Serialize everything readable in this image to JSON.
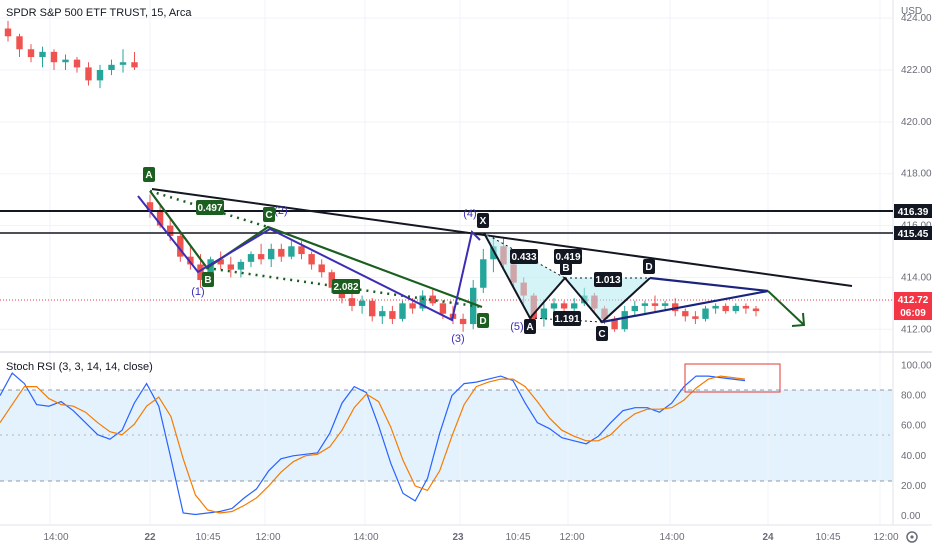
{
  "header": {
    "symbol_title": "SPDR S&P 500 ETF TRUST, 15, Arca",
    "currency": "USD"
  },
  "price_axis": {
    "ticks": [
      "424.00",
      "422.00",
      "420.00",
      "418.00",
      "416.00",
      "414.00",
      "412.00"
    ],
    "markers": [
      {
        "label": "416.39",
        "value": 416.39,
        "color": "#131722"
      },
      {
        "label": "415.45",
        "value": 415.45,
        "color": "#131722"
      }
    ],
    "last_price": {
      "label": "412.72",
      "countdown": "06:09",
      "value": 412.72,
      "color": "#f23645"
    }
  },
  "time_axis": {
    "labels": [
      "14:00",
      "22",
      "10:45",
      "12:00",
      "14:00",
      "23",
      "10:45",
      "12:00",
      "14:00",
      "24",
      "10:45",
      "12:00"
    ]
  },
  "indicator": {
    "name": "Stoch RSI (3, 3, 14, 14, close)",
    "ticks": [
      "100.00",
      "80.00",
      "60.00",
      "40.00",
      "20.00",
      "0.00"
    ],
    "upper_band": 80,
    "lower_band": 20,
    "colors": {
      "k": "#2962ff",
      "d": "#f57c00",
      "band_fill": "#e3f2fd"
    }
  },
  "annotations": {
    "pattern1_points": [
      {
        "label": "A",
        "price": 417.1
      },
      {
        "label": "B",
        "price": 413.6
      },
      {
        "label": "C",
        "price": 416.3
      },
      {
        "label": "D",
        "price": 412.2
      }
    ],
    "pattern1_ratios": [
      "0.497",
      "2.082"
    ],
    "pattern2_points": [
      {
        "label": "X",
        "price": 415.7
      },
      {
        "label": "A",
        "price": 411.8
      },
      {
        "label": "B",
        "price": 413.4
      },
      {
        "label": "C",
        "price": 411.8
      },
      {
        "label": "D",
        "price": 413.3
      }
    ],
    "pattern2_ratios": [
      "0.433",
      "0.419",
      "1.013",
      "1.191"
    ],
    "waves": [
      "(1)",
      "(2)",
      "(3)",
      "(4)",
      "(5)"
    ],
    "colors": {
      "pattern1": "#1b5e20",
      "pattern2": "#131722",
      "wave": "#3d2db5",
      "triangle": "#1a237e",
      "arrow": "#1b5e20"
    }
  },
  "chart_data": [
    {
      "type": "candlestick",
      "title": "SPDR S&P 500 ETF TRUST, 15, Arca",
      "ylabel": "USD",
      "ylim": [
        411.2,
        424.7
      ],
      "up_color": "#26a69a",
      "down_color": "#ef5350",
      "candles": [
        {
          "o": 423.6,
          "h": 423.9,
          "l": 423.1,
          "c": 423.3
        },
        {
          "o": 423.3,
          "h": 423.4,
          "l": 422.5,
          "c": 422.8
        },
        {
          "o": 422.8,
          "h": 423.0,
          "l": 422.3,
          "c": 422.5
        },
        {
          "o": 422.5,
          "h": 422.9,
          "l": 422.1,
          "c": 422.7
        },
        {
          "o": 422.7,
          "h": 422.8,
          "l": 422.0,
          "c": 422.3
        },
        {
          "o": 422.3,
          "h": 422.6,
          "l": 422.0,
          "c": 422.4
        },
        {
          "o": 422.4,
          "h": 422.5,
          "l": 421.9,
          "c": 422.1
        },
        {
          "o": 422.1,
          "h": 422.3,
          "l": 421.4,
          "c": 421.6
        },
        {
          "o": 421.6,
          "h": 422.2,
          "l": 421.3,
          "c": 422.0
        },
        {
          "o": 422.0,
          "h": 422.4,
          "l": 421.8,
          "c": 422.2
        },
        {
          "o": 422.2,
          "h": 422.8,
          "l": 421.9,
          "c": 422.3
        },
        {
          "o": 422.3,
          "h": 422.7,
          "l": 422.0,
          "c": 422.1
        },
        {
          "o": 416.9,
          "h": 417.2,
          "l": 416.3,
          "c": 416.6
        },
        {
          "o": 416.6,
          "h": 416.8,
          "l": 415.9,
          "c": 416.0
        },
        {
          "o": 416.0,
          "h": 416.3,
          "l": 415.4,
          "c": 415.6
        },
        {
          "o": 415.6,
          "h": 415.7,
          "l": 414.6,
          "c": 414.8
        },
        {
          "o": 414.8,
          "h": 415.2,
          "l": 414.3,
          "c": 414.5
        },
        {
          "o": 414.5,
          "h": 414.9,
          "l": 413.6,
          "c": 413.9
        },
        {
          "o": 413.9,
          "h": 414.8,
          "l": 413.7,
          "c": 414.7
        },
        {
          "o": 414.7,
          "h": 415.0,
          "l": 414.3,
          "c": 414.5
        },
        {
          "o": 414.5,
          "h": 414.8,
          "l": 414.0,
          "c": 414.3
        },
        {
          "o": 414.3,
          "h": 414.7,
          "l": 414.0,
          "c": 414.6
        },
        {
          "o": 414.6,
          "h": 415.0,
          "l": 414.4,
          "c": 414.9
        },
        {
          "o": 414.9,
          "h": 415.3,
          "l": 414.5,
          "c": 414.7
        },
        {
          "o": 414.7,
          "h": 415.3,
          "l": 414.4,
          "c": 415.1
        },
        {
          "o": 415.1,
          "h": 415.3,
          "l": 414.6,
          "c": 414.8
        },
        {
          "o": 414.8,
          "h": 415.4,
          "l": 414.7,
          "c": 415.2
        },
        {
          "o": 415.2,
          "h": 415.4,
          "l": 414.7,
          "c": 414.9
        },
        {
          "o": 414.9,
          "h": 415.0,
          "l": 414.3,
          "c": 414.5
        },
        {
          "o": 414.5,
          "h": 414.7,
          "l": 414.0,
          "c": 414.2
        },
        {
          "o": 414.2,
          "h": 414.3,
          "l": 413.4,
          "c": 413.6
        },
        {
          "o": 413.6,
          "h": 413.8,
          "l": 413.0,
          "c": 413.2
        },
        {
          "o": 413.2,
          "h": 413.5,
          "l": 412.7,
          "c": 412.9
        },
        {
          "o": 412.9,
          "h": 413.3,
          "l": 412.6,
          "c": 413.1
        },
        {
          "o": 413.1,
          "h": 413.2,
          "l": 412.3,
          "c": 412.5
        },
        {
          "o": 412.5,
          "h": 412.9,
          "l": 412.2,
          "c": 412.7
        },
        {
          "o": 412.7,
          "h": 412.9,
          "l": 412.2,
          "c": 412.4
        },
        {
          "o": 412.4,
          "h": 413.1,
          "l": 412.3,
          "c": 413.0
        },
        {
          "o": 413.0,
          "h": 413.2,
          "l": 412.6,
          "c": 412.8
        },
        {
          "o": 412.8,
          "h": 413.5,
          "l": 412.7,
          "c": 413.3
        },
        {
          "o": 413.3,
          "h": 413.6,
          "l": 412.9,
          "c": 413.0
        },
        {
          "o": 413.0,
          "h": 413.1,
          "l": 412.4,
          "c": 412.6
        },
        {
          "o": 412.6,
          "h": 412.9,
          "l": 412.2,
          "c": 412.4
        },
        {
          "o": 412.4,
          "h": 412.6,
          "l": 411.9,
          "c": 412.2
        },
        {
          "o": 412.2,
          "h": 413.9,
          "l": 412.0,
          "c": 413.6
        },
        {
          "o": 413.6,
          "h": 415.1,
          "l": 413.4,
          "c": 414.7
        },
        {
          "o": 414.7,
          "h": 415.6,
          "l": 414.2,
          "c": 415.2
        },
        {
          "o": 415.2,
          "h": 415.5,
          "l": 414.3,
          "c": 414.5
        },
        {
          "o": 414.5,
          "h": 414.8,
          "l": 413.6,
          "c": 413.8
        },
        {
          "o": 413.8,
          "h": 414.0,
          "l": 413.0,
          "c": 413.3
        },
        {
          "o": 413.3,
          "h": 413.4,
          "l": 412.0,
          "c": 412.4
        },
        {
          "o": 412.4,
          "h": 413.0,
          "l": 412.1,
          "c": 412.8
        },
        {
          "o": 412.8,
          "h": 413.2,
          "l": 412.5,
          "c": 413.0
        },
        {
          "o": 413.0,
          "h": 413.1,
          "l": 412.6,
          "c": 412.8
        },
        {
          "o": 412.8,
          "h": 413.2,
          "l": 412.6,
          "c": 413.0
        },
        {
          "o": 413.0,
          "h": 413.6,
          "l": 412.9,
          "c": 413.3
        },
        {
          "o": 413.3,
          "h": 413.4,
          "l": 412.6,
          "c": 412.8
        },
        {
          "o": 412.8,
          "h": 412.9,
          "l": 412.2,
          "c": 412.4
        },
        {
          "o": 412.4,
          "h": 412.5,
          "l": 411.9,
          "c": 412.0
        },
        {
          "o": 412.0,
          "h": 412.9,
          "l": 411.9,
          "c": 412.7
        },
        {
          "o": 412.7,
          "h": 413.1,
          "l": 412.5,
          "c": 412.9
        },
        {
          "o": 412.9,
          "h": 413.1,
          "l": 412.6,
          "c": 413.0
        },
        {
          "o": 413.0,
          "h": 413.3,
          "l": 412.7,
          "c": 412.9
        },
        {
          "o": 412.9,
          "h": 413.1,
          "l": 412.7,
          "c": 413.0
        },
        {
          "o": 413.0,
          "h": 413.2,
          "l": 412.5,
          "c": 412.7
        },
        {
          "o": 412.7,
          "h": 412.8,
          "l": 412.3,
          "c": 412.5
        },
        {
          "o": 412.5,
          "h": 412.7,
          "l": 412.2,
          "c": 412.4
        },
        {
          "o": 412.4,
          "h": 412.9,
          "l": 412.3,
          "c": 412.8
        },
        {
          "o": 412.8,
          "h": 413.0,
          "l": 412.6,
          "c": 412.9
        },
        {
          "o": 412.9,
          "h": 413.0,
          "l": 412.6,
          "c": 412.7
        },
        {
          "o": 412.7,
          "h": 413.0,
          "l": 412.6,
          "c": 412.9
        },
        {
          "o": 412.9,
          "h": 413.0,
          "l": 412.6,
          "c": 412.8
        },
        {
          "o": 412.8,
          "h": 412.9,
          "l": 412.5,
          "c": 412.7
        }
      ]
    },
    {
      "type": "line",
      "title": "Stoch RSI (3, 3, 14, 14, close)",
      "ylim": [
        -6,
        107
      ],
      "series": [
        {
          "name": "K",
          "values": [
            80,
            95,
            88,
            74,
            73,
            76,
            70,
            62,
            54,
            51,
            57,
            75,
            88,
            73,
            38,
            2,
            1,
            2,
            3,
            5,
            12,
            18,
            30,
            38,
            40,
            41,
            42,
            55,
            75,
            86,
            82,
            60,
            35,
            15,
            10,
            25,
            55,
            80,
            88,
            89,
            91,
            93,
            90,
            75,
            62,
            58,
            52,
            50,
            48,
            53,
            62,
            70,
            72,
            72,
            69,
            75,
            86,
            93,
            93,
            92,
            91,
            90
          ]
        },
        {
          "name": "D",
          "values": [
            62,
            74,
            86,
            86,
            78,
            74,
            73,
            69,
            62,
            56,
            54,
            61,
            73,
            79,
            66,
            38,
            14,
            4,
            2,
            3,
            7,
            12,
            20,
            29,
            36,
            40,
            41,
            46,
            57,
            72,
            81,
            76,
            59,
            37,
            20,
            17,
            30,
            53,
            74,
            86,
            89,
            91,
            91,
            86,
            76,
            65,
            57,
            53,
            50,
            50,
            54,
            62,
            68,
            71,
            71,
            72,
            77,
            85,
            91,
            93,
            92,
            91
          ]
        }
      ]
    }
  ]
}
